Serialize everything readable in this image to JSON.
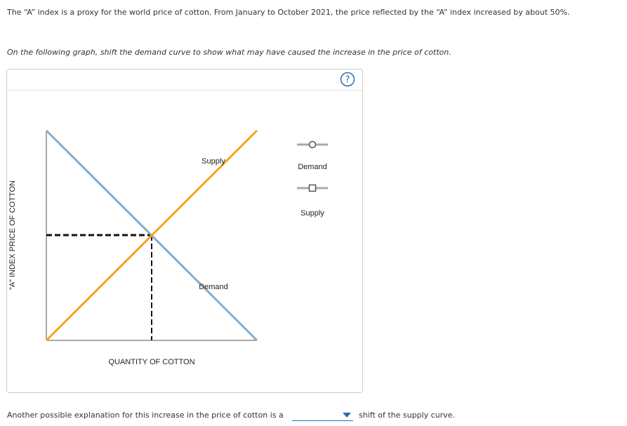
{
  "question": {
    "intro": "The “A” index is a proxy for the world price of cotton. From January to October 2021, the price reflected by the “A” index increased by about 50%.",
    "instruction": "On the following graph, shift the demand curve to show what may have caused the increase in the price of cotton."
  },
  "graph": {
    "help": "?",
    "y_axis_label": "“A” INDEX PRICE OF COTTON",
    "x_axis_label": "QUANTITY OF COTTON",
    "curve_labels": {
      "supply": "Supply",
      "demand": "Demand"
    },
    "tools": [
      "Demand",
      "Supply"
    ]
  },
  "answer": {
    "before": "Another possible explanation for this increase in the price of cotton is a",
    "after": "shift of the supply curve."
  }
}
